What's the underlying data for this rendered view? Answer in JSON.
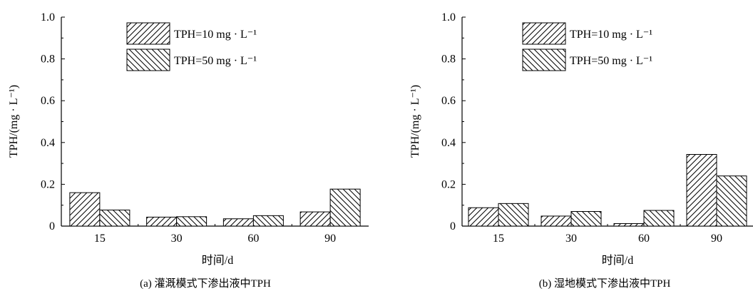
{
  "colors": {
    "axis": "#000000",
    "bar_fill": "#ffffff",
    "hatch": "#000000"
  },
  "chart_data": [
    {
      "type": "bar",
      "caption": "(a) 灌溉模式下渗出液中TPH",
      "xlabel": "时间/d",
      "ylabel": "TPH/(mg · L⁻¹)",
      "ylim": [
        0,
        1.0
      ],
      "yticks": [
        "0",
        "0.2",
        "0.4",
        "0.6",
        "0.8",
        "1.0"
      ],
      "categories": [
        "15",
        "30",
        "60",
        "90"
      ],
      "legend_position": "top-center",
      "series": [
        {
          "name": "TPH=10 mg · L⁻¹",
          "hatch": "forward-diagonal",
          "values": [
            0.16,
            0.043,
            0.035,
            0.068
          ]
        },
        {
          "name": "TPH=50 mg · L⁻¹",
          "hatch": "back-diagonal",
          "values": [
            0.077,
            0.045,
            0.05,
            0.177
          ]
        }
      ]
    },
    {
      "type": "bar",
      "caption": "(b) 湿地模式下渗出液中TPH",
      "xlabel": "时间/d",
      "ylabel": "TPH/(mg · L⁻¹)",
      "ylim": [
        0,
        1.0
      ],
      "yticks": [
        "0",
        "0.2",
        "0.4",
        "0.6",
        "0.8",
        "1.0"
      ],
      "categories": [
        "15",
        "30",
        "60",
        "90"
      ],
      "legend_position": "top-left",
      "series": [
        {
          "name": "TPH=10 mg · L⁻¹",
          "hatch": "forward-diagonal",
          "values": [
            0.088,
            0.048,
            0.012,
            0.343
          ]
        },
        {
          "name": "TPH=50 mg · L⁻¹",
          "hatch": "back-diagonal",
          "values": [
            0.108,
            0.07,
            0.075,
            0.24
          ]
        }
      ]
    }
  ]
}
